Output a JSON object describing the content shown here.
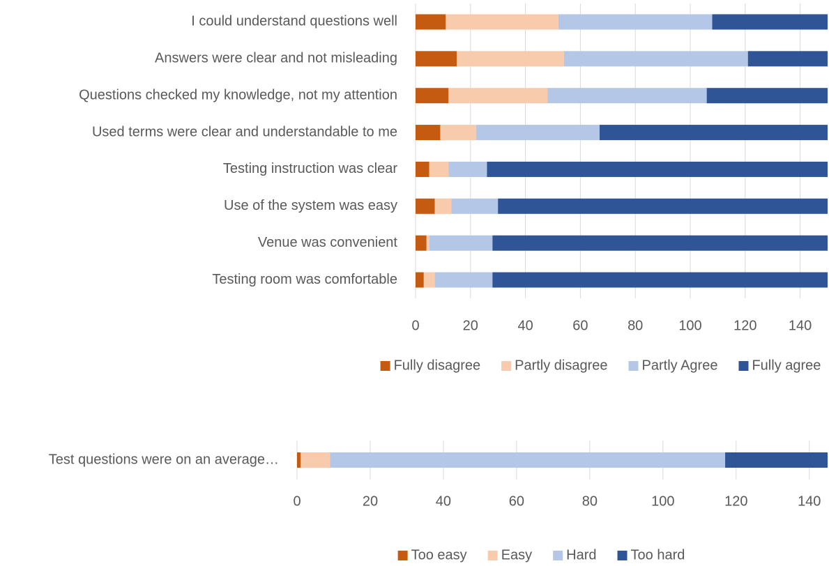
{
  "chart_data": [
    {
      "type": "stacked_barh",
      "categories": [
        "I could understand questions well",
        "Answers were clear and not misleading",
        "Questions checked my knowledge, not my attention",
        "Used terms were clear and understandable to me",
        "Testing instruction was clear",
        "Use of the system was easy",
        "Venue was convenient",
        "Testing room was comfortable"
      ],
      "series": [
        {
          "name": "Fully disagree",
          "color": "#c55a11",
          "values": [
            11,
            15,
            12,
            9,
            5,
            7,
            4,
            3
          ]
        },
        {
          "name": "Partly disagree",
          "color": "#f8cbad",
          "values": [
            41,
            39,
            36,
            13,
            7,
            6,
            1,
            4
          ]
        },
        {
          "name": "Partly Agree",
          "color": "#b4c7e7",
          "values": [
            56,
            67,
            58,
            45,
            14,
            17,
            23,
            21
          ]
        },
        {
          "name": "Fully agree",
          "color": "#2f5597",
          "values": [
            42,
            29,
            44,
            83,
            124,
            120,
            122,
            122
          ]
        }
      ],
      "xlim": [
        0,
        150
      ],
      "xticks": [
        0,
        20,
        40,
        60,
        80,
        100,
        120,
        140
      ],
      "grid": true,
      "legend": "bottom"
    },
    {
      "type": "stacked_barh",
      "categories": [
        "Test questions were on an average…"
      ],
      "series": [
        {
          "name": "Too easy",
          "color": "#c55a11",
          "values": [
            1
          ]
        },
        {
          "name": "Easy",
          "color": "#f8cbad",
          "values": [
            8
          ]
        },
        {
          "name": "Hard",
          "color": "#b4c7e7",
          "values": [
            108
          ]
        },
        {
          "name": "Too hard",
          "color": "#2f5597",
          "values": [
            28
          ]
        }
      ],
      "xlim": [
        0,
        145
      ],
      "xticks": [
        0,
        20,
        40,
        60,
        80,
        100,
        120,
        140
      ],
      "grid": true,
      "legend": "bottom"
    }
  ]
}
